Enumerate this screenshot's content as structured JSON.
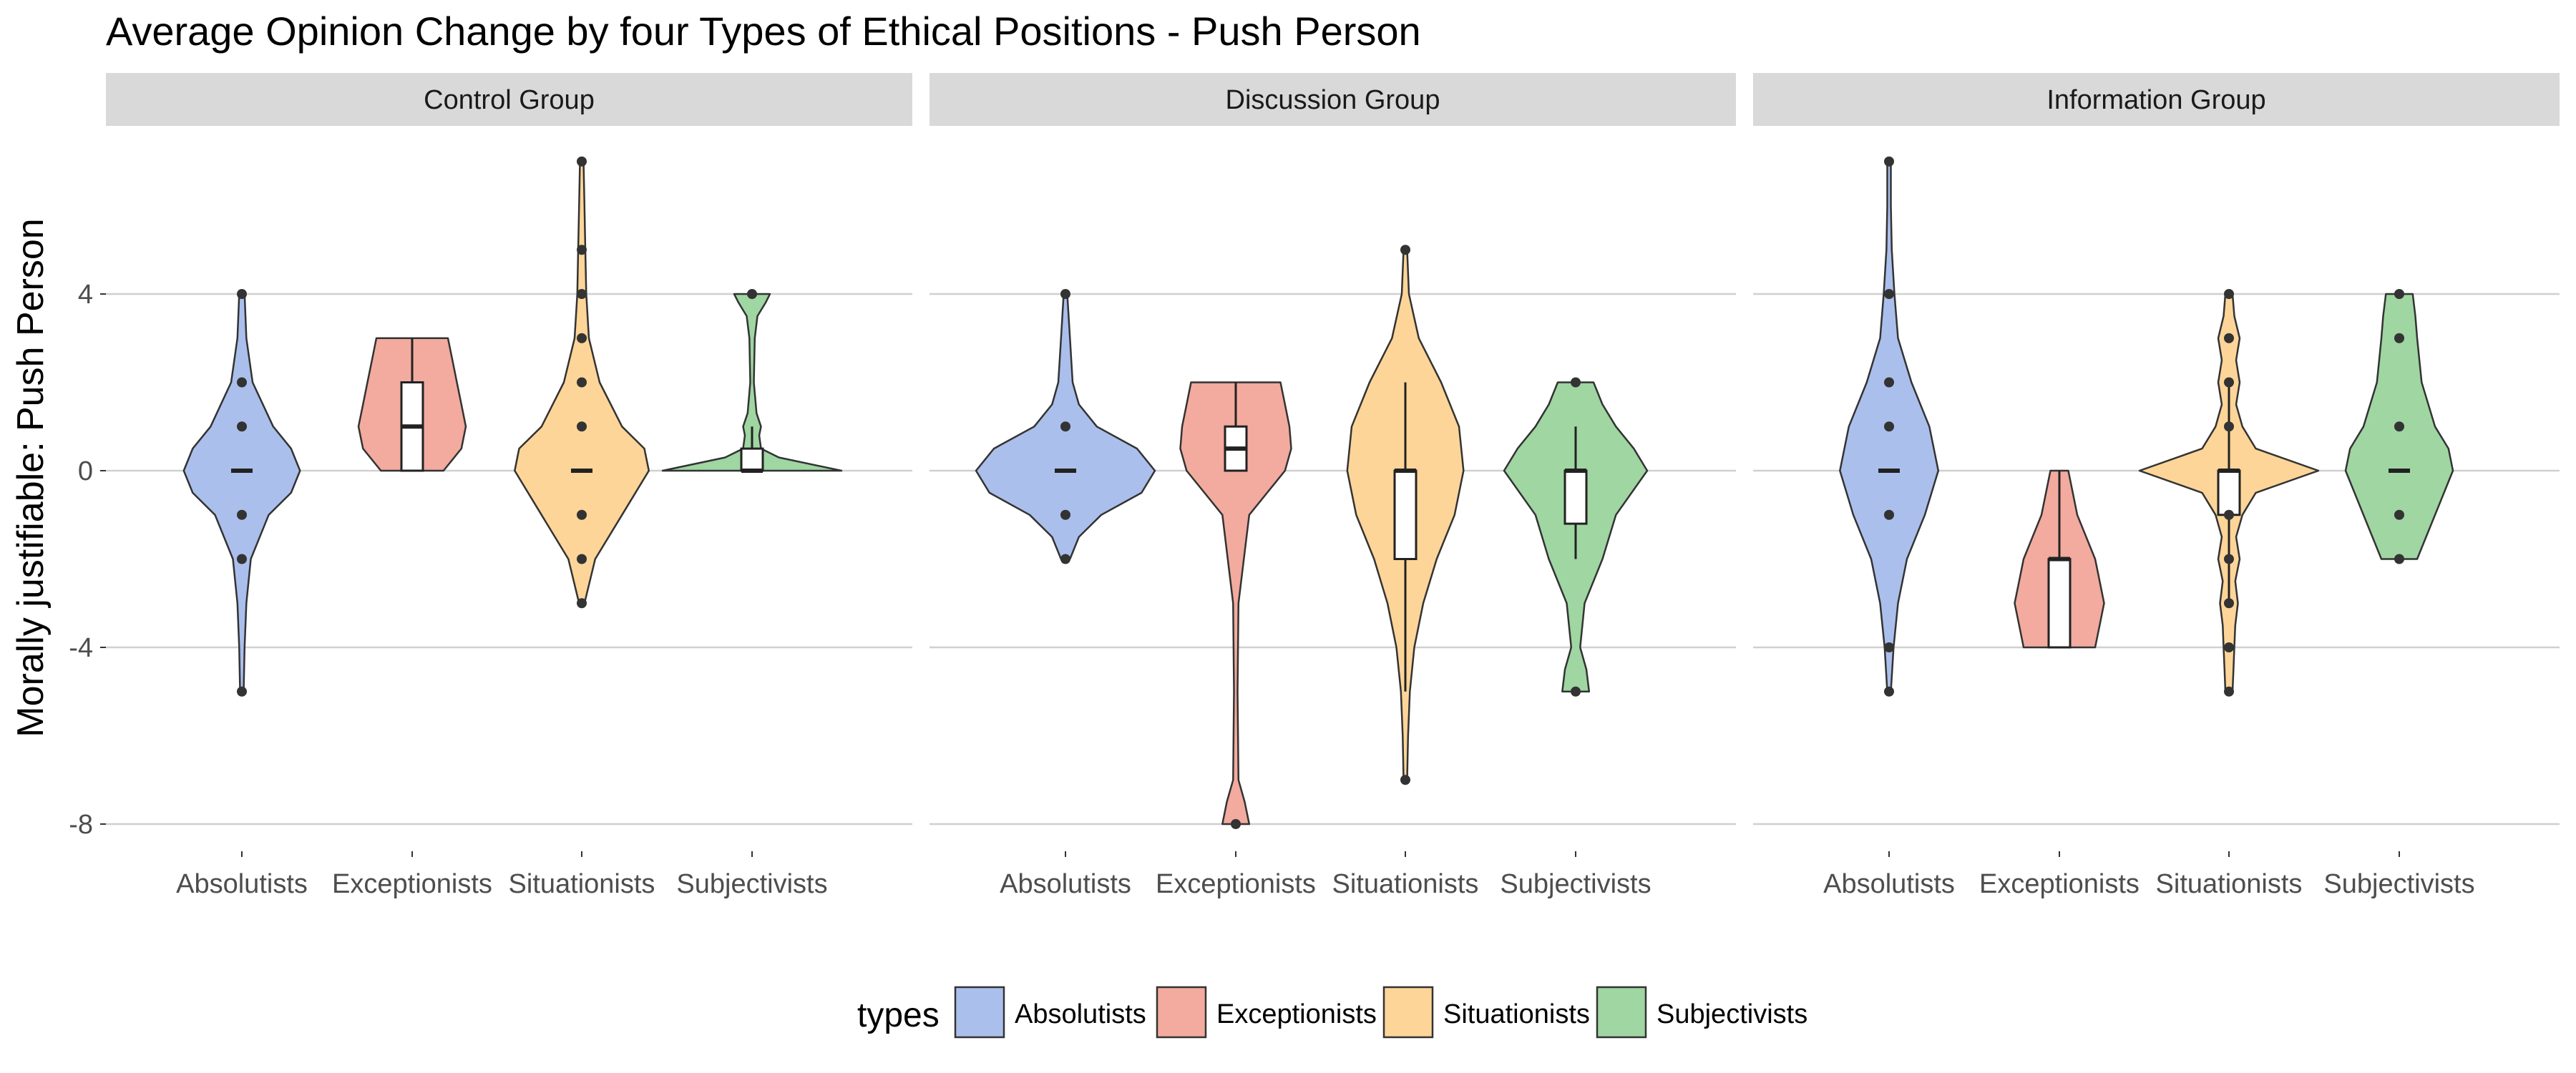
{
  "chart_data": {
    "type": "violin",
    "title": "Average Opinion Change by four Types of Ethical Positions - Push Person",
    "ylabel": "Morally justifiable: Push Person",
    "xlabel": "",
    "ylim": [
      -8.6,
      7.2
    ],
    "yticks": [
      -8,
      -4,
      0,
      4
    ],
    "ytick_labels": [
      "-8",
      "-4",
      "0",
      "4"
    ],
    "grid": true,
    "legend": {
      "title": "types",
      "position": "bottom"
    },
    "categories": [
      "Absolutists",
      "Exceptionists",
      "Situationists",
      "Subjectivists"
    ],
    "colors": {
      "Absolutists": "#abbfec",
      "Exceptionists": "#f2ab9e",
      "Situationists": "#fdd598",
      "Subjectivists": "#9fd6a2"
    },
    "panels": [
      {
        "name": "Control Group",
        "violins": [
          {
            "type": "Absolutists",
            "median": 0,
            "q1": 0,
            "q3": 0,
            "whisker_low": 0,
            "whisker_high": 0,
            "points": [
              4,
              2,
              1,
              -1,
              -2,
              -5
            ],
            "density": [
              [
                -5,
                0.02
              ],
              [
                -4,
                0.03
              ],
              [
                -3,
                0.05
              ],
              [
                -2,
                0.1
              ],
              [
                -1,
                0.3
              ],
              [
                -0.5,
                0.55
              ],
              [
                0,
                0.65
              ],
              [
                0.5,
                0.55
              ],
              [
                1,
                0.35
              ],
              [
                2,
                0.12
              ],
              [
                3,
                0.05
              ],
              [
                4,
                0.03
              ]
            ]
          },
          {
            "type": "Exceptionists",
            "median": 1,
            "q1": 0,
            "q3": 2,
            "whisker_low": 0,
            "whisker_high": 3,
            "points": [],
            "density": [
              [
                0,
                0.35
              ],
              [
                0.5,
                0.55
              ],
              [
                1,
                0.6
              ],
              [
                1.5,
                0.55
              ],
              [
                2,
                0.5
              ],
              [
                2.5,
                0.45
              ],
              [
                3,
                0.4
              ]
            ]
          },
          {
            "type": "Situationists",
            "median": 0,
            "q1": 0,
            "q3": 0,
            "whisker_low": 0,
            "whisker_high": 0,
            "points": [
              7,
              5,
              4,
              3,
              2,
              1,
              -1,
              -2,
              -3
            ],
            "density": [
              [
                -3,
                0.03
              ],
              [
                -2,
                0.15
              ],
              [
                -1,
                0.45
              ],
              [
                0,
                0.75
              ],
              [
                0.5,
                0.7
              ],
              [
                1,
                0.45
              ],
              [
                2,
                0.2
              ],
              [
                3,
                0.08
              ],
              [
                4,
                0.05
              ],
              [
                5,
                0.04
              ],
              [
                6,
                0.03
              ],
              [
                7,
                0.02
              ]
            ]
          },
          {
            "type": "Subjectivists",
            "median": 0,
            "q1": 0,
            "q3": 0.5,
            "whisker_low": 0,
            "whisker_high": 1,
            "points": [
              4
            ],
            "density": [
              [
                0,
                1.0
              ],
              [
                0.3,
                0.3
              ],
              [
                0.5,
                0.1
              ],
              [
                0.8,
                0.08
              ],
              [
                1,
                0.1
              ],
              [
                1.3,
                0.05
              ],
              [
                2,
                0.02
              ],
              [
                3,
                0.03
              ],
              [
                3.5,
                0.06
              ],
              [
                3.8,
                0.15
              ],
              [
                4,
                0.2
              ]
            ]
          }
        ]
      },
      {
        "name": "Discussion Group",
        "violins": [
          {
            "type": "Absolutists",
            "median": 0,
            "q1": 0,
            "q3": 0,
            "whisker_low": 0,
            "whisker_high": 0,
            "points": [
              4,
              1,
              -1,
              -2
            ],
            "density": [
              [
                -2,
                0.05
              ],
              [
                -1.5,
                0.15
              ],
              [
                -1,
                0.4
              ],
              [
                -0.5,
                0.85
              ],
              [
                0,
                1.0
              ],
              [
                0.5,
                0.8
              ],
              [
                1,
                0.35
              ],
              [
                1.5,
                0.15
              ],
              [
                2,
                0.08
              ],
              [
                3,
                0.05
              ],
              [
                4,
                0.02
              ]
            ]
          },
          {
            "type": "Exceptionists",
            "median": 0.5,
            "q1": 0,
            "q3": 1,
            "whisker_low": 0,
            "whisker_high": 2,
            "points": [
              -8
            ],
            "density": [
              [
                -8,
                0.15
              ],
              [
                -7.5,
                0.1
              ],
              [
                -7,
                0.03
              ],
              [
                -5,
                0.02
              ],
              [
                -3,
                0.03
              ],
              [
                -1,
                0.15
              ],
              [
                -0.5,
                0.35
              ],
              [
                0,
                0.55
              ],
              [
                0.5,
                0.62
              ],
              [
                1,
                0.6
              ],
              [
                1.5,
                0.55
              ],
              [
                2,
                0.5
              ]
            ]
          },
          {
            "type": "Situationists",
            "median": 0,
            "q1": -2,
            "q3": 0,
            "whisker_low": -5,
            "whisker_high": 2,
            "points": [
              5,
              -7
            ],
            "density": [
              [
                -7,
                0.02
              ],
              [
                -6,
                0.03
              ],
              [
                -5,
                0.05
              ],
              [
                -4,
                0.1
              ],
              [
                -3,
                0.2
              ],
              [
                -2,
                0.35
              ],
              [
                -1,
                0.55
              ],
              [
                0,
                0.65
              ],
              [
                1,
                0.6
              ],
              [
                2,
                0.4
              ],
              [
                3,
                0.15
              ],
              [
                4,
                0.04
              ],
              [
                5,
                0.02
              ]
            ]
          },
          {
            "type": "Subjectivists",
            "median": 0,
            "q1": -1.2,
            "q3": 0,
            "whisker_low": -2,
            "whisker_high": 1,
            "points": [
              2,
              -5
            ],
            "density": [
              [
                -5,
                0.15
              ],
              [
                -4.5,
                0.12
              ],
              [
                -4,
                0.05
              ],
              [
                -3,
                0.1
              ],
              [
                -2,
                0.3
              ],
              [
                -1,
                0.45
              ],
              [
                0,
                0.8
              ],
              [
                0.5,
                0.65
              ],
              [
                1,
                0.45
              ],
              [
                1.5,
                0.3
              ],
              [
                2,
                0.2
              ]
            ]
          }
        ]
      },
      {
        "name": "Information Group",
        "violins": [
          {
            "type": "Absolutists",
            "median": 0,
            "q1": 0,
            "q3": 0,
            "whisker_low": 0,
            "whisker_high": 0,
            "points": [
              7,
              4,
              2,
              1,
              -1,
              -4,
              -5
            ],
            "density": [
              [
                -5,
                0.02
              ],
              [
                -4,
                0.05
              ],
              [
                -3,
                0.1
              ],
              [
                -2,
                0.2
              ],
              [
                -1,
                0.4
              ],
              [
                0,
                0.55
              ],
              [
                1,
                0.45
              ],
              [
                2,
                0.25
              ],
              [
                3,
                0.1
              ],
              [
                4,
                0.06
              ],
              [
                5,
                0.03
              ],
              [
                6,
                0.02
              ],
              [
                7,
                0.02
              ]
            ]
          },
          {
            "type": "Exceptionists",
            "median": -2,
            "q1": -4,
            "q3": -2,
            "whisker_low": -4,
            "whisker_high": 0,
            "points": [],
            "density": [
              [
                -4,
                0.4
              ],
              [
                -3.5,
                0.45
              ],
              [
                -3,
                0.5
              ],
              [
                -2.5,
                0.45
              ],
              [
                -2,
                0.4
              ],
              [
                -1,
                0.2
              ],
              [
                0,
                0.1
              ]
            ]
          },
          {
            "type": "Situationists",
            "median": 0,
            "q1": -1,
            "q3": 0,
            "whisker_low": -3,
            "whisker_high": 2,
            "points": [
              4,
              3,
              2,
              1,
              -1,
              -2,
              -3,
              -4,
              -5
            ],
            "density": [
              [
                -5,
                0.04
              ],
              [
                -4.5,
                0.05
              ],
              [
                -4,
                0.06
              ],
              [
                -3.5,
                0.07
              ],
              [
                -3,
                0.1
              ],
              [
                -2.5,
                0.07
              ],
              [
                -2,
                0.12
              ],
              [
                -1.5,
                0.08
              ],
              [
                -1,
                0.15
              ],
              [
                -0.5,
                0.3
              ],
              [
                0,
                1.0
              ],
              [
                0.5,
                0.3
              ],
              [
                1,
                0.15
              ],
              [
                1.5,
                0.08
              ],
              [
                2,
                0.12
              ],
              [
                2.5,
                0.08
              ],
              [
                3,
                0.12
              ],
              [
                3.5,
                0.06
              ],
              [
                4,
                0.04
              ]
            ]
          },
          {
            "type": "Subjectivists",
            "median": 0,
            "q1": 0,
            "q3": 0,
            "whisker_low": 0,
            "whisker_high": 0,
            "points": [
              4,
              3,
              1,
              -1,
              -2
            ],
            "density": [
              [
                -2,
                0.2
              ],
              [
                -1.5,
                0.3
              ],
              [
                -1,
                0.4
              ],
              [
                0,
                0.6
              ],
              [
                0.5,
                0.55
              ],
              [
                1,
                0.4
              ],
              [
                2,
                0.25
              ],
              [
                3,
                0.2
              ],
              [
                3.5,
                0.18
              ],
              [
                4,
                0.15
              ]
            ]
          }
        ]
      }
    ]
  }
}
